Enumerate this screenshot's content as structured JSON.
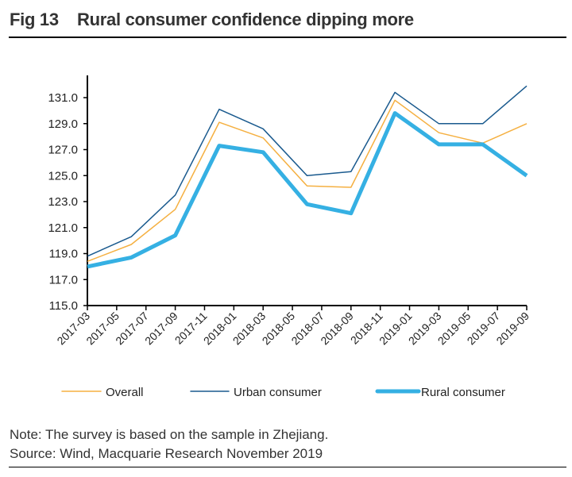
{
  "title": "Fig 13    Rural consumer confidence dipping more",
  "notes": {
    "note": "Note: The survey is based on the sample in Zhejiang.",
    "source": "Source: Wind, Macquarie Research November 2019"
  },
  "chart_data": {
    "type": "line",
    "title": "Rural consumer confidence dipping more",
    "xlabel": "",
    "ylabel": "",
    "ylim": [
      115.0,
      132.0
    ],
    "yticks": [
      "115.0",
      "117.0",
      "119.0",
      "121.0",
      "123.0",
      "125.0",
      "127.0",
      "129.0",
      "131.0"
    ],
    "xtick_labels": [
      "2017-03",
      "2017-05",
      "2017-07",
      "2017-09",
      "2017-11",
      "2018-01",
      "2018-03",
      "2018-05",
      "2018-07",
      "2018-09",
      "2018-11",
      "2019-01",
      "2019-03",
      "2019-05",
      "2019-07",
      "2019-09"
    ],
    "x": [
      "2017-03",
      "2017-06",
      "2017-09",
      "2017-12",
      "2018-03",
      "2018-06",
      "2018-09",
      "2018-12",
      "2019-03",
      "2019-06",
      "2019-09"
    ],
    "grid": false,
    "legend_position": "bottom",
    "series": [
      {
        "name": "Overall",
        "color": "#f5b041",
        "width": 1.5,
        "values": [
          118.4,
          119.7,
          122.4,
          129.1,
          127.9,
          124.2,
          124.1,
          130.8,
          128.3,
          127.5,
          129.0
        ]
      },
      {
        "name": "Urban consumer",
        "color": "#1a5a8e",
        "width": 1.5,
        "values": [
          118.8,
          120.3,
          123.5,
          130.1,
          128.6,
          125.0,
          125.3,
          131.4,
          129.0,
          129.0,
          131.9
        ]
      },
      {
        "name": "Rural consumer",
        "color": "#35b0e3",
        "width": 5,
        "values": [
          118.0,
          118.7,
          120.4,
          127.3,
          126.8,
          122.8,
          122.1,
          129.8,
          127.4,
          127.4,
          125.0
        ]
      }
    ]
  }
}
